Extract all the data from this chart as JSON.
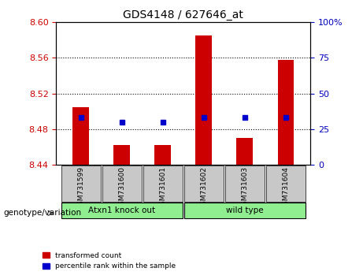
{
  "title": "GDS4148 / 627646_at",
  "samples": [
    "GSM731599",
    "GSM731600",
    "GSM731601",
    "GSM731602",
    "GSM731603",
    "GSM731604"
  ],
  "group_labels": [
    "Atxn1 knock out",
    "wild type"
  ],
  "red_values": [
    8.505,
    8.462,
    8.462,
    8.585,
    8.47,
    8.558
  ],
  "blue_values_pct": [
    33,
    30,
    30,
    33,
    33,
    33
  ],
  "ylim_left": [
    8.44,
    8.6
  ],
  "ylim_right": [
    0,
    100
  ],
  "yticks_left": [
    8.44,
    8.48,
    8.52,
    8.56,
    8.6
  ],
  "yticks_right": [
    0,
    25,
    50,
    75,
    100
  ],
  "hlines": [
    8.48,
    8.52,
    8.56
  ],
  "bar_bottom": 8.44,
  "bar_width": 0.4,
  "red_color": "#CC0000",
  "blue_color": "#0000CC",
  "left_tick_color": "#CC0000",
  "right_tick_color": "#0000BB",
  "grid_color": "black",
  "bg_xticklabel": "#C8C8C8",
  "bg_group": "#90EE90",
  "legend_red": "transformed count",
  "legend_blue": "percentile rank within the sample",
  "xlabel_group": "genotype/variation"
}
